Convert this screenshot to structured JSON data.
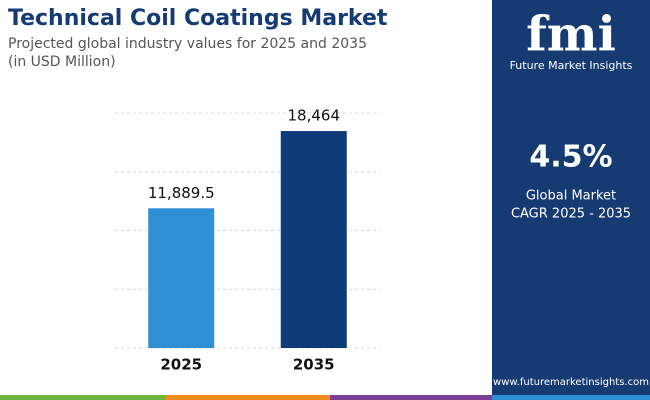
{
  "chart_data": {
    "type": "bar",
    "title": "Technical Coil Coatings Market",
    "subtitle": "Projected global industry values for 2025 and 2035",
    "unit_label": "(in USD Million)",
    "categories": [
      "2025",
      "2035"
    ],
    "values": [
      11889.5,
      18464
    ],
    "value_labels": [
      "11,889.5",
      "18,464"
    ],
    "colors": [
      "#2f8fd5",
      "#0d3a78"
    ],
    "ylim": [
      0,
      20000
    ],
    "yticks": [
      0,
      5000,
      10000,
      15000,
      20000
    ],
    "grid": true
  },
  "sidebar": {
    "logo": "fmi",
    "brand": "Future Market Insights",
    "cagr": "4.5%",
    "cagr_label_1": "Global Market",
    "cagr_label_2": "CAGR 2025 - 2035",
    "website": "www.futuremarketinsights.com"
  }
}
